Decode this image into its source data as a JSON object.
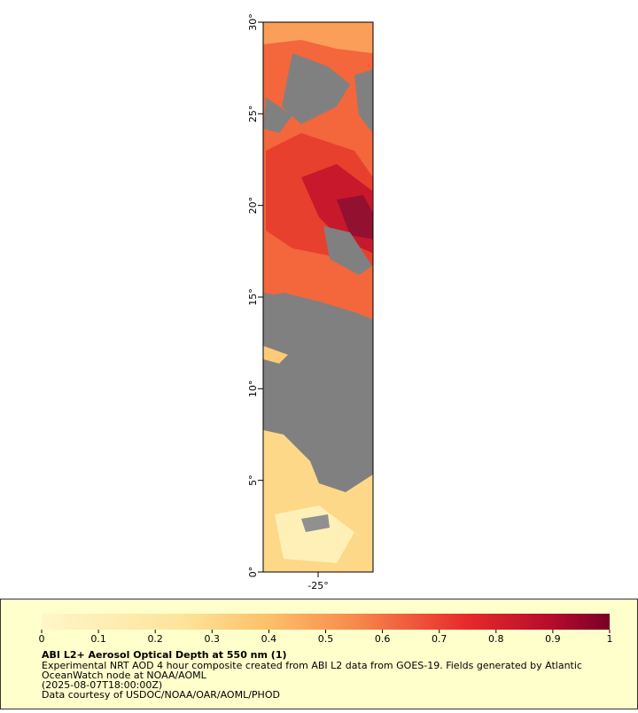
{
  "map": {
    "latlim": [
      0,
      30
    ],
    "lonlim": [
      -28,
      -22
    ],
    "lat_ticks": [
      {
        "value": 0,
        "label": "0°"
      },
      {
        "value": 5,
        "label": "5°"
      },
      {
        "value": 10,
        "label": "10°"
      },
      {
        "value": 15,
        "label": "15°"
      },
      {
        "value": 20,
        "label": "20°"
      },
      {
        "value": 25,
        "label": "25°"
      },
      {
        "value": 30,
        "label": "30°"
      }
    ],
    "lon_ticks": [
      {
        "value": -25,
        "label": "-25°"
      }
    ]
  },
  "colorbar": {
    "range": [
      0,
      1
    ],
    "ticks": [
      0,
      0.1,
      0.2,
      0.3,
      0.4,
      0.5,
      0.6,
      0.7,
      0.8,
      0.9,
      1
    ]
  },
  "legend": {
    "title": "ABI L2+ Aerosol Optical Depth at 550 nm (1)",
    "lines": [
      "Experimental NRT AOD 4 hour composite created from ABI L2 data from GOES-19. Fields generated by Atlantic",
      "OceanWatch node at NOAA/AOML",
      "(2025-08-07T18:00:00Z)",
      "Data courtesy of USDOC/NOAA/OAR/AOML/PHOD"
    ]
  }
}
